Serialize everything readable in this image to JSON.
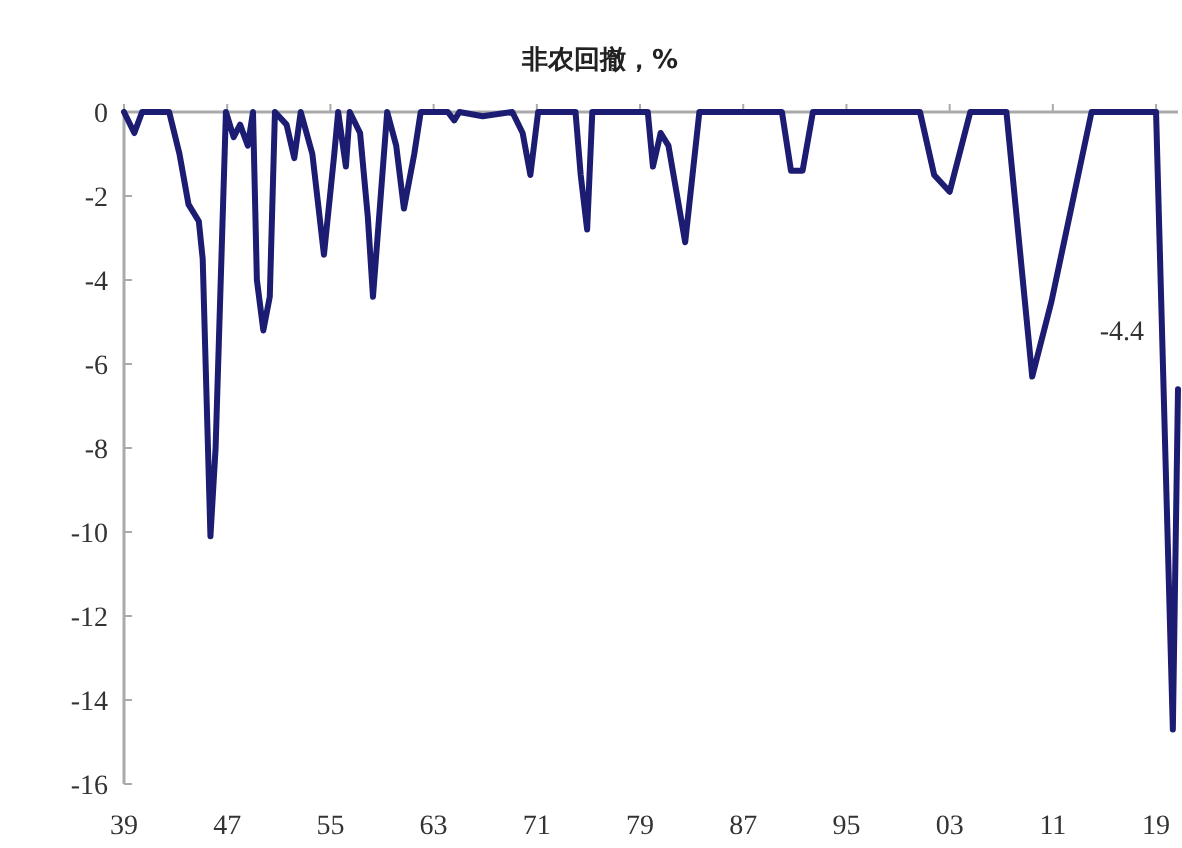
{
  "chart_data": {
    "type": "line",
    "title": "非农回撤，%",
    "annotations": [
      "-4.4"
    ],
    "grid": false,
    "line_style": "solid",
    "xlim": [
      1939,
      2020.7
    ],
    "ylim": [
      -16,
      0
    ],
    "xticks": [
      {
        "value": 1939,
        "label": "39"
      },
      {
        "value": 1947,
        "label": "47"
      },
      {
        "value": 1955,
        "label": "55"
      },
      {
        "value": 1963,
        "label": "63"
      },
      {
        "value": 1971,
        "label": "71"
      },
      {
        "value": 1979,
        "label": "79"
      },
      {
        "value": 1987,
        "label": "87"
      },
      {
        "value": 1995,
        "label": "95"
      },
      {
        "value": 2003,
        "label": "03"
      },
      {
        "value": 2011,
        "label": "11"
      },
      {
        "value": 2019,
        "label": "19"
      }
    ],
    "yticks": [
      0,
      -2,
      -4,
      -6,
      -8,
      -10,
      -12,
      -14,
      -16
    ],
    "series": [
      {
        "color": "#1c1c72",
        "x": [
          1939,
          1939.8,
          1940.4,
          1942.5,
          1943.3,
          1944,
          1944.8,
          1945.1,
          1945.7,
          1946.1,
          1946.6,
          1946.9,
          1947.5,
          1948,
          1948.6,
          1949,
          1949.3,
          1949.8,
          1950.3,
          1950.7,
          1951.6,
          1952.2,
          1952.7,
          1953.6,
          1954.5,
          1955.3,
          1955.6,
          1956.2,
          1956.5,
          1957.3,
          1957.9,
          1958.3,
          1958.9,
          1959.4,
          1960.1,
          1960.7,
          1961.5,
          1962,
          1964.1,
          1964.6,
          1965,
          1966.8,
          1969.1,
          1969.9,
          1970.5,
          1971.1,
          1974,
          1974.4,
          1974.9,
          1975.3,
          1979.6,
          1980,
          1980.6,
          1981.2,
          1982.5,
          1983.6,
          1990,
          1990.7,
          1991.6,
          1992.4,
          2000.7,
          2001.8,
          2003,
          2004.6,
          2007.4,
          2009.4,
          2010.9,
          2014,
          2019,
          2020.3,
          2020.7
        ],
        "values": [
          0,
          -0.5,
          0,
          0,
          -1,
          -2.2,
          -2.6,
          -3.5,
          -10.1,
          -8,
          -3,
          0,
          -0.6,
          -0.3,
          -0.8,
          0,
          -4,
          -5.2,
          -4.4,
          0,
          -0.3,
          -1.1,
          0,
          -1,
          -3.4,
          -1,
          0,
          -1.3,
          0,
          -0.5,
          -2.5,
          -4.4,
          -2,
          0,
          -0.8,
          -2.3,
          -1,
          0,
          0,
          -0.2,
          0,
          -0.1,
          0,
          -0.5,
          -1.5,
          0,
          0,
          -1.5,
          -2.8,
          0,
          0,
          -1.3,
          -0.5,
          -0.8,
          -3.1,
          0,
          0,
          -1.4,
          -1.4,
          0,
          0,
          -1.5,
          -1.9,
          0,
          0,
          -6.3,
          -4.5,
          0,
          0,
          -14.7,
          -6.6
        ]
      }
    ]
  }
}
